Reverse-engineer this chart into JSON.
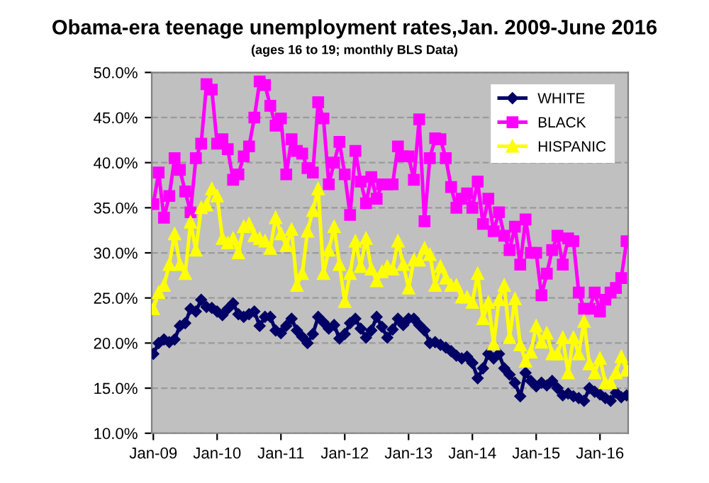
{
  "chart_data": {
    "type": "line",
    "title": "Obama-era teenage unemployment rates,Jan. 2009-June 2016",
    "subtitle": "(ages 16 to 19; monthly BLS Data)",
    "categories": [
      "Jan-09",
      null,
      null,
      null,
      null,
      null,
      null,
      null,
      null,
      null,
      null,
      null,
      "Jan-10",
      null,
      null,
      null,
      null,
      null,
      null,
      null,
      null,
      null,
      null,
      null,
      "Jan-11",
      null,
      null,
      null,
      null,
      null,
      null,
      null,
      null,
      null,
      null,
      null,
      "Jan-12",
      null,
      null,
      null,
      null,
      null,
      null,
      null,
      null,
      null,
      null,
      null,
      "Jan-13",
      null,
      null,
      null,
      null,
      null,
      null,
      null,
      null,
      null,
      null,
      null,
      "Jan-14",
      null,
      null,
      null,
      null,
      null,
      null,
      null,
      null,
      null,
      null,
      null,
      "Jan-15",
      null,
      null,
      null,
      null,
      null,
      null,
      null,
      null,
      null,
      null,
      null,
      "Jan-16",
      null,
      null,
      null,
      null,
      null
    ],
    "series": [
      {
        "name": "WHITE",
        "color": "#000066",
        "marker": "diamond",
        "values": [
          18.8,
          20.0,
          20.4,
          20.1,
          20.4,
          21.9,
          22.2,
          23.8,
          23.5,
          24.8,
          24.0,
          23.9,
          23.5,
          23.1,
          23.8,
          24.4,
          23.2,
          22.9,
          23.2,
          23.5,
          21.9,
          22.9,
          22.9,
          21.4,
          21.1,
          21.9,
          22.7,
          21.4,
          20.7,
          20.0,
          21.0,
          22.9,
          22.3,
          21.6,
          22.0,
          20.5,
          21.0,
          22.2,
          22.7,
          21.6,
          20.6,
          21.4,
          22.9,
          21.8,
          20.6,
          21.5,
          22.7,
          22.0,
          22.7,
          22.7,
          22.0,
          21.4,
          20.0,
          20.1,
          19.8,
          19.5,
          19.1,
          18.6,
          18.3,
          18.5,
          17.8,
          16.1,
          17.2,
          18.8,
          18.3,
          18.8,
          17.2,
          16.5,
          15.6,
          14.1,
          16.7,
          15.8,
          15.2,
          15.6,
          15.3,
          15.8,
          15.0,
          14.2,
          14.4,
          14.1,
          13.9,
          13.6,
          15.0,
          14.6,
          14.3,
          13.9,
          13.6,
          14.5,
          14.0,
          14.2
        ]
      },
      {
        "name": "BLACK",
        "color": "#ff00ff",
        "marker": "square",
        "values": [
          35.4,
          38.9,
          33.9,
          36.3,
          40.5,
          39.2,
          36.8,
          34.5,
          40.5,
          42.1,
          48.7,
          48.1,
          42.1,
          42.6,
          41.5,
          38.1,
          38.7,
          40.7,
          41.8,
          45.0,
          49.0,
          48.6,
          46.3,
          44.1,
          44.9,
          38.7,
          42.6,
          41.3,
          41.0,
          39.4,
          38.9,
          46.7,
          44.9,
          37.6,
          40.0,
          42.3,
          38.7,
          34.2,
          41.3,
          37.9,
          35.5,
          38.4,
          36.0,
          37.6,
          37.6,
          37.6,
          41.8,
          40.7,
          40.7,
          38.1,
          44.8,
          33.5,
          40.5,
          42.7,
          42.6,
          40.5,
          37.3,
          35.0,
          36.0,
          36.6,
          35.0,
          37.9,
          33.2,
          36.0,
          32.4,
          34.5,
          31.9,
          30.3,
          32.9,
          28.7,
          33.7,
          30.0,
          30.0,
          25.3,
          27.7,
          30.3,
          31.9,
          28.7,
          31.6,
          31.3,
          25.6,
          23.8,
          23.8,
          25.6,
          23.5,
          24.8,
          25.6,
          26.1,
          27.2,
          31.3
        ]
      },
      {
        "name": "HISPANIC",
        "color": "#ffff00",
        "marker": "triangle",
        "values": [
          23.8,
          25.6,
          26.4,
          28.7,
          32.1,
          28.7,
          27.7,
          33.4,
          30.3,
          35.0,
          35.3,
          37.1,
          36.3,
          31.6,
          31.1,
          31.6,
          30.0,
          32.9,
          33.2,
          31.9,
          31.6,
          31.3,
          30.5,
          33.9,
          32.1,
          30.8,
          32.6,
          26.4,
          27.7,
          32.4,
          34.7,
          37.1,
          27.7,
          30.3,
          32.9,
          28.7,
          24.6,
          27.7,
          31.3,
          28.5,
          31.6,
          28.2,
          26.9,
          27.9,
          28.5,
          28.2,
          31.3,
          28.7,
          26.1,
          29.2,
          29.2,
          30.5,
          29.8,
          26.4,
          28.5,
          27.2,
          26.4,
          26.4,
          25.1,
          25.1,
          24.5,
          27.7,
          22.7,
          24.5,
          19.9,
          24.8,
          26.4,
          20.6,
          24.9,
          19.8,
          18.0,
          19.0,
          21.9,
          20.1,
          21.1,
          18.8,
          18.8,
          20.6,
          16.7,
          20.6,
          18.8,
          22.4,
          17.7,
          16.7,
          18.3,
          15.6,
          15.6,
          16.7,
          18.5,
          17.0
        ]
      }
    ],
    "ylim": [
      10,
      50
    ],
    "yticks": [
      {
        "value": 10,
        "label": "10.0%"
      },
      {
        "value": 15,
        "label": "15.0%"
      },
      {
        "value": 20,
        "label": "20.0%"
      },
      {
        "value": 25,
        "label": "25.0%"
      },
      {
        "value": 30,
        "label": "30.0%"
      },
      {
        "value": 35,
        "label": "35.0%"
      },
      {
        "value": 40,
        "label": "40.0%"
      },
      {
        "value": 45,
        "label": "45.0%"
      },
      {
        "value": 50,
        "label": "50.0%"
      }
    ],
    "grid": "y",
    "legend": "top right",
    "line_style": "solid"
  }
}
